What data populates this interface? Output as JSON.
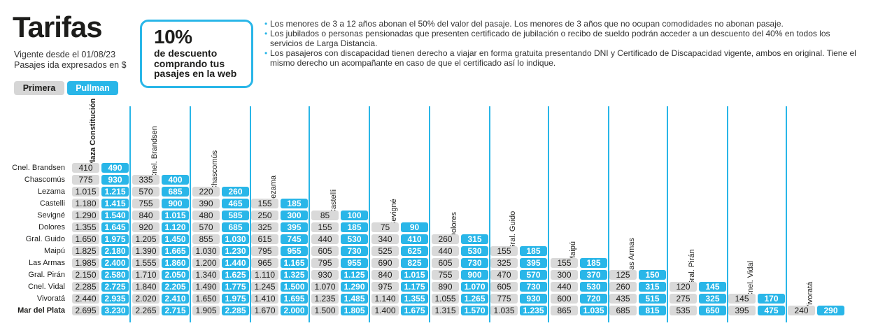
{
  "header": {
    "title": "Tarifas",
    "valid_from": "Vigente desde el 01/08/23",
    "fare_note": "Pasajes ida expresados en $"
  },
  "service_tabs": [
    {
      "label": "Primera",
      "color": "#d6d6d6"
    },
    {
      "label": "Pullman",
      "color": "#29b6e8"
    }
  ],
  "promo": {
    "percent": "10%",
    "line1": "de descuento",
    "line2": "comprando tus",
    "line3": "pasajes en la web"
  },
  "notes": [
    "Los menores de 3 a 12 años abonan el 50% del valor del pasaje. Los menores de 3 años que no ocupan comodidades no abonan pasaje.",
    "Los jubilados o personas pensionadas que presenten certificado de jubilación o recibo de sueldo podrán acceder a un descuento del 40% en todos los servicios de Larga Distancia.",
    "Los pasajeros con discapacidad tienen derecho a viajar en forma gratuita presentando DNI y Certificado de Discapacidad vigente, ambos en original. Tiene el mismo derecho un acompañante en caso de que el certificado así lo indique."
  ],
  "colors": {
    "accent": "#29b6e8",
    "primera_cell": "#d9d9d9"
  },
  "columns": [
    "Plaza Constitución",
    "Cnel. Brandsen",
    "Chascomús",
    "Lezama",
    "Castelli",
    "Sevigné",
    "Dolores",
    "Gral. Guido",
    "Maipú",
    "Las Armas",
    "Gral. Pirán",
    "Cnel. Vidal",
    "Vivoratá"
  ],
  "rows": [
    {
      "label": "Cnel. Brandsen",
      "cells": [
        [
          "410",
          "490"
        ]
      ]
    },
    {
      "label": "Chascomús",
      "cells": [
        [
          "775",
          "930"
        ],
        [
          "335",
          "400"
        ]
      ]
    },
    {
      "label": "Lezama",
      "cells": [
        [
          "1.015",
          "1.215"
        ],
        [
          "570",
          "685"
        ],
        [
          "220",
          "260"
        ]
      ]
    },
    {
      "label": "Castelli",
      "cells": [
        [
          "1.180",
          "1.415"
        ],
        [
          "755",
          "900"
        ],
        [
          "390",
          "465"
        ],
        [
          "155",
          "185"
        ]
      ]
    },
    {
      "label": "Sevigné",
      "cells": [
        [
          "1.290",
          "1.540"
        ],
        [
          "840",
          "1.015"
        ],
        [
          "480",
          "585"
        ],
        [
          "250",
          "300"
        ],
        [
          "85",
          "100"
        ]
      ]
    },
    {
      "label": "Dolores",
      "cells": [
        [
          "1.355",
          "1.645"
        ],
        [
          "920",
          "1.120"
        ],
        [
          "570",
          "685"
        ],
        [
          "325",
          "395"
        ],
        [
          "155",
          "185"
        ],
        [
          "75",
          "90"
        ]
      ]
    },
    {
      "label": "Gral. Guido",
      "cells": [
        [
          "1.650",
          "1.975"
        ],
        [
          "1.205",
          "1.450"
        ],
        [
          "855",
          "1.030"
        ],
        [
          "615",
          "745"
        ],
        [
          "440",
          "530"
        ],
        [
          "340",
          "410"
        ],
        [
          "260",
          "315"
        ]
      ]
    },
    {
      "label": "Maipú",
      "cells": [
        [
          "1.825",
          "2.180"
        ],
        [
          "1.390",
          "1.665"
        ],
        [
          "1.030",
          "1.230"
        ],
        [
          "795",
          "955"
        ],
        [
          "605",
          "730"
        ],
        [
          "525",
          "625"
        ],
        [
          "440",
          "530"
        ],
        [
          "155",
          "185"
        ]
      ]
    },
    {
      "label": "Las Armas",
      "cells": [
        [
          "1.985",
          "2.400"
        ],
        [
          "1.555",
          "1.860"
        ],
        [
          "1.200",
          "1.440"
        ],
        [
          "965",
          "1.165"
        ],
        [
          "795",
          "955"
        ],
        [
          "690",
          "825"
        ],
        [
          "605",
          "730"
        ],
        [
          "325",
          "395"
        ],
        [
          "155",
          "185"
        ]
      ]
    },
    {
      "label": "Gral. Pirán",
      "cells": [
        [
          "2.150",
          "2.580"
        ],
        [
          "1.710",
          "2.050"
        ],
        [
          "1.340",
          "1.625"
        ],
        [
          "1.110",
          "1.325"
        ],
        [
          "930",
          "1.125"
        ],
        [
          "840",
          "1.015"
        ],
        [
          "755",
          "900"
        ],
        [
          "470",
          "570"
        ],
        [
          "300",
          "370"
        ],
        [
          "125",
          "150"
        ]
      ]
    },
    {
      "label": "Cnel. Vidal",
      "cells": [
        [
          "2.285",
          "2.725"
        ],
        [
          "1.840",
          "2.205"
        ],
        [
          "1.490",
          "1.775"
        ],
        [
          "1.245",
          "1.500"
        ],
        [
          "1.070",
          "1.290"
        ],
        [
          "975",
          "1.175"
        ],
        [
          "890",
          "1.070"
        ],
        [
          "605",
          "730"
        ],
        [
          "440",
          "530"
        ],
        [
          "260",
          "315"
        ],
        [
          "120",
          "145"
        ]
      ]
    },
    {
      "label": "Vivoratá",
      "cells": [
        [
          "2.440",
          "2.935"
        ],
        [
          "2.020",
          "2.410"
        ],
        [
          "1.650",
          "1.975"
        ],
        [
          "1.410",
          "1.695"
        ],
        [
          "1.235",
          "1.485"
        ],
        [
          "1.140",
          "1.355"
        ],
        [
          "1.055",
          "1.265"
        ],
        [
          "775",
          "930"
        ],
        [
          "600",
          "720"
        ],
        [
          "435",
          "515"
        ],
        [
          "275",
          "325"
        ],
        [
          "145",
          "170"
        ]
      ]
    },
    {
      "label": "Mar del Plata",
      "cells": [
        [
          "2.695",
          "3.230"
        ],
        [
          "2.265",
          "2.715"
        ],
        [
          "1.905",
          "2.285"
        ],
        [
          "1.670",
          "2.000"
        ],
        [
          "1.500",
          "1.805"
        ],
        [
          "1.400",
          "1.675"
        ],
        [
          "1.315",
          "1.570"
        ],
        [
          "1.035",
          "1.235"
        ],
        [
          "865",
          "1.035"
        ],
        [
          "685",
          "815"
        ],
        [
          "535",
          "650"
        ],
        [
          "395",
          "475"
        ],
        [
          "240",
          "290"
        ]
      ]
    }
  ]
}
